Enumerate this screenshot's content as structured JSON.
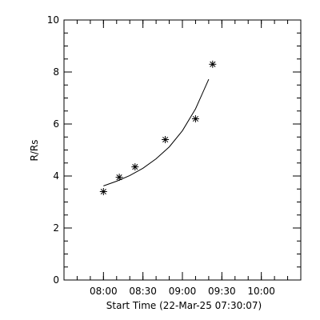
{
  "chart_data": {
    "type": "scatter",
    "xlabel": "Start Time (22-Mar-25 07:30:07)",
    "ylabel": "R/Rs",
    "x_unit": "time of day",
    "xlim": [
      "07:30",
      "10:30"
    ],
    "ylim": [
      0,
      10
    ],
    "x_ticks": [
      "08:00",
      "08:30",
      "09:00",
      "09:30",
      "10:00"
    ],
    "y_ticks": [
      "0",
      "2",
      "4",
      "6",
      "8",
      "10"
    ],
    "grid": false,
    "series": [
      {
        "marker": "asterisk",
        "x": [
          "08:00",
          "08:12",
          "08:24",
          "08:47",
          "09:10",
          "09:23"
        ],
        "y": [
          3.4,
          3.95,
          4.35,
          5.4,
          6.2,
          8.3
        ]
      }
    ],
    "fit": {
      "style": "line",
      "x": [
        "08:00",
        "08:10",
        "08:20",
        "08:30",
        "08:40",
        "08:50",
        "09:00",
        "09:10",
        "09:20"
      ],
      "y": [
        3.62,
        3.8,
        4.02,
        4.3,
        4.66,
        5.12,
        5.74,
        6.58,
        7.72
      ]
    }
  }
}
